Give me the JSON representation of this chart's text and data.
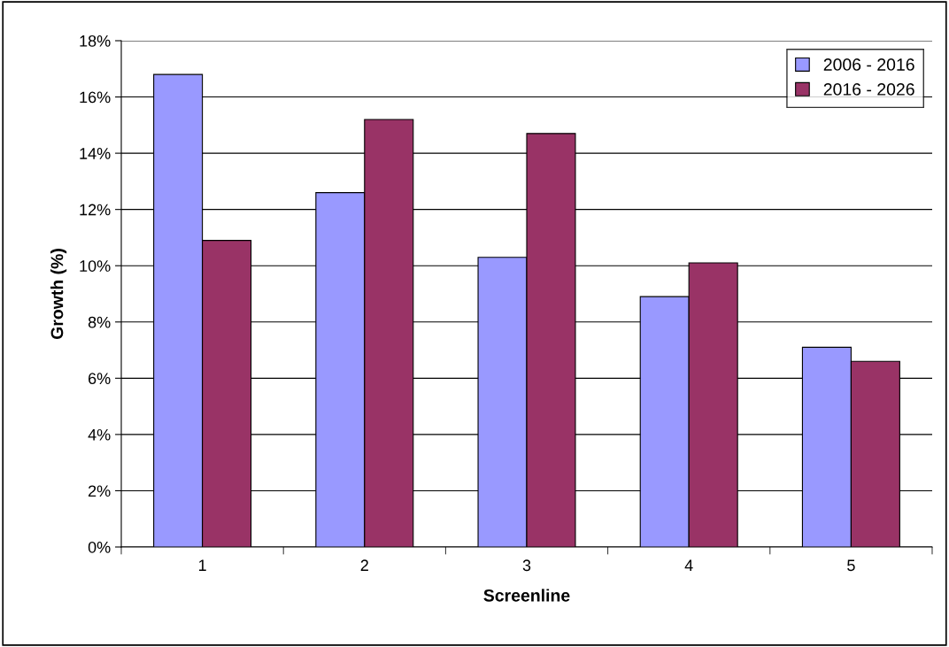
{
  "chart_data": {
    "type": "bar",
    "xlabel": "Screenline",
    "ylabel": "Growth (%)",
    "categories": [
      "1",
      "2",
      "3",
      "4",
      "5"
    ],
    "series": [
      {
        "name": "2006 - 2016",
        "color": "#9999ff",
        "values": [
          16.8,
          12.6,
          10.3,
          8.9,
          7.1
        ]
      },
      {
        "name": "2016 - 2026",
        "color": "#993366",
        "values": [
          10.9,
          15.2,
          14.7,
          10.1,
          6.6
        ]
      }
    ],
    "ylim": [
      0,
      18
    ],
    "yticks": [
      {
        "value": 0,
        "label": "0%"
      },
      {
        "value": 2,
        "label": "2%"
      },
      {
        "value": 4,
        "label": "4%"
      },
      {
        "value": 6,
        "label": "6%"
      },
      {
        "value": 8,
        "label": "8%"
      },
      {
        "value": 10,
        "label": "10%"
      },
      {
        "value": 12,
        "label": "12%"
      },
      {
        "value": 14,
        "label": "14%"
      },
      {
        "value": 16,
        "label": "16%"
      },
      {
        "value": 18,
        "label": "18%"
      }
    ],
    "grid": "y",
    "legend": "top right"
  }
}
